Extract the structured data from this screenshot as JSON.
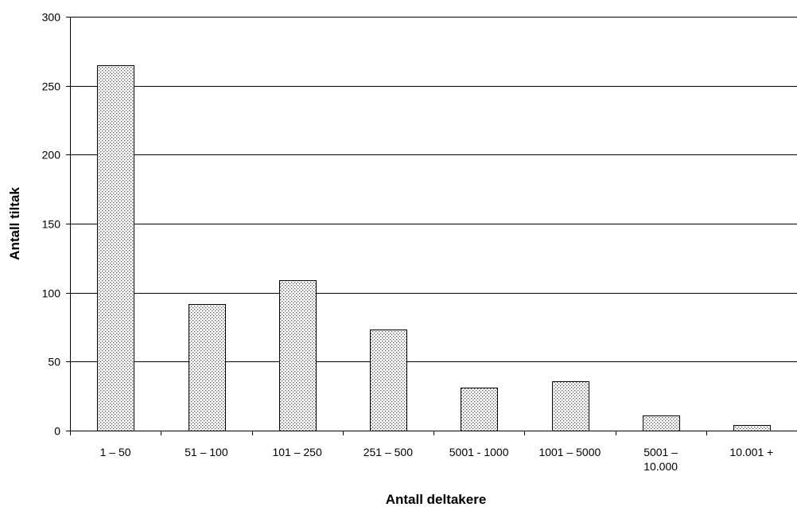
{
  "chart_data": {
    "type": "bar",
    "title": "",
    "xlabel": "Antall deltakere",
    "ylabel": "Antall tiltak",
    "categories": [
      [
        "1 – 50"
      ],
      [
        "51 – 100"
      ],
      [
        "101 – 250"
      ],
      [
        "251 – 500"
      ],
      [
        "5001 - 1000"
      ],
      [
        "1001 – 5000"
      ],
      [
        "5001 –",
        "10.000"
      ],
      [
        "10.001 +"
      ]
    ],
    "values": [
      265,
      92,
      109,
      73,
      31,
      36,
      11,
      4
    ],
    "ylim": [
      0,
      300
    ],
    "yticks": [
      0,
      50,
      100,
      150,
      200,
      250,
      300
    ],
    "grid": true,
    "legend": "none",
    "bar_fill": "dotted-gray"
  }
}
